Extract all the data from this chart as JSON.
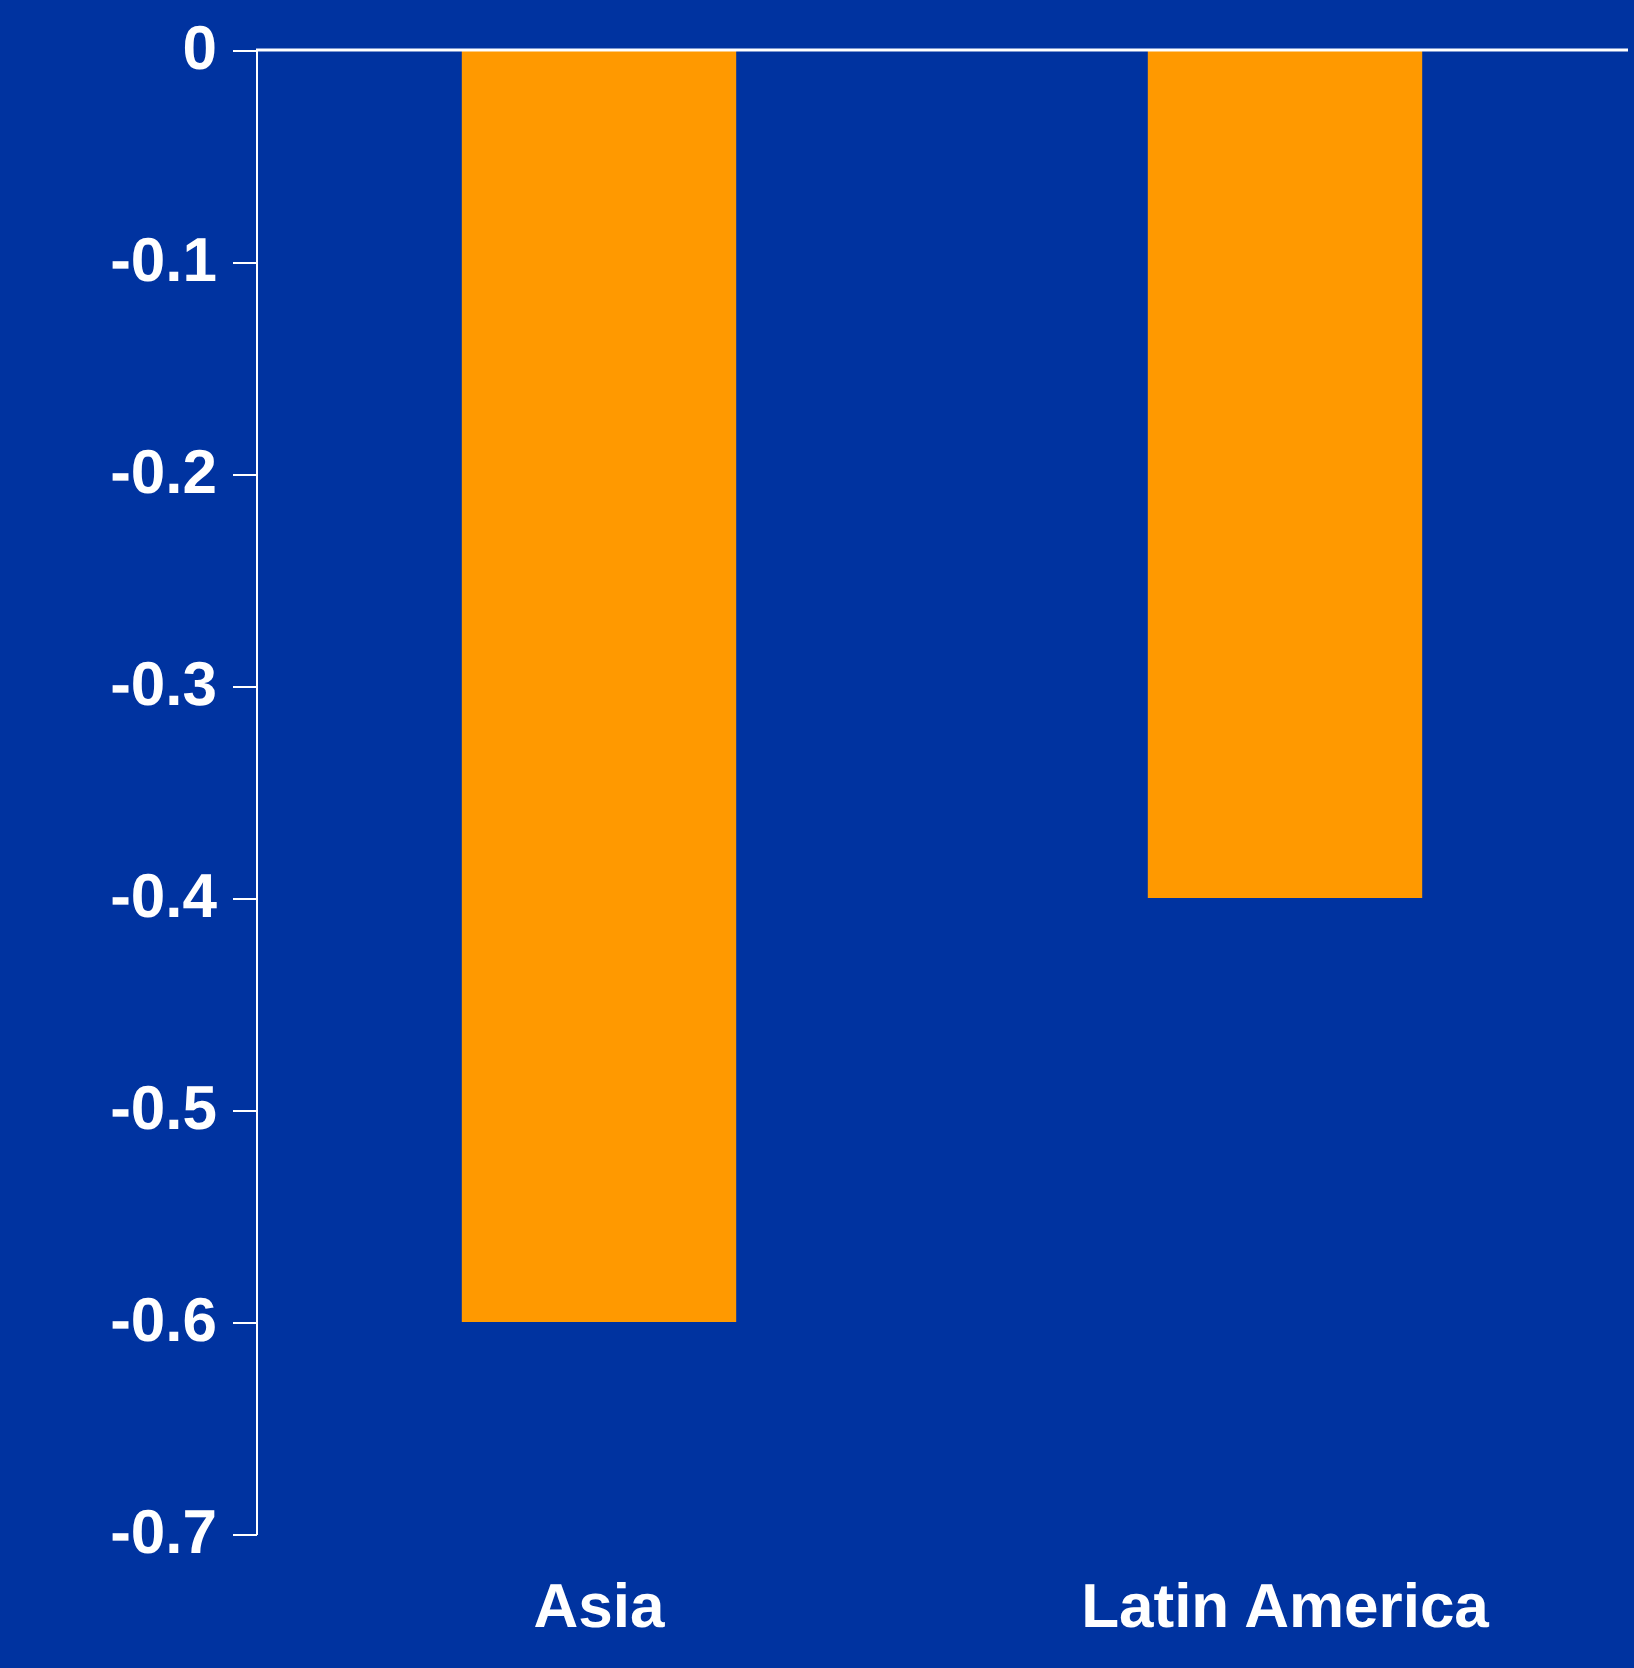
{
  "chart_data": {
    "type": "bar",
    "categories": [
      "Asia",
      "Latin America"
    ],
    "values": [
      -0.6,
      -0.4
    ],
    "color": "#ff9900",
    "ylim": [
      -0.7,
      0
    ],
    "yticks": [
      -0.7,
      -0.6,
      -0.5,
      -0.4,
      -0.3,
      -0.2,
      -0.1,
      0
    ],
    "grid": false
  }
}
